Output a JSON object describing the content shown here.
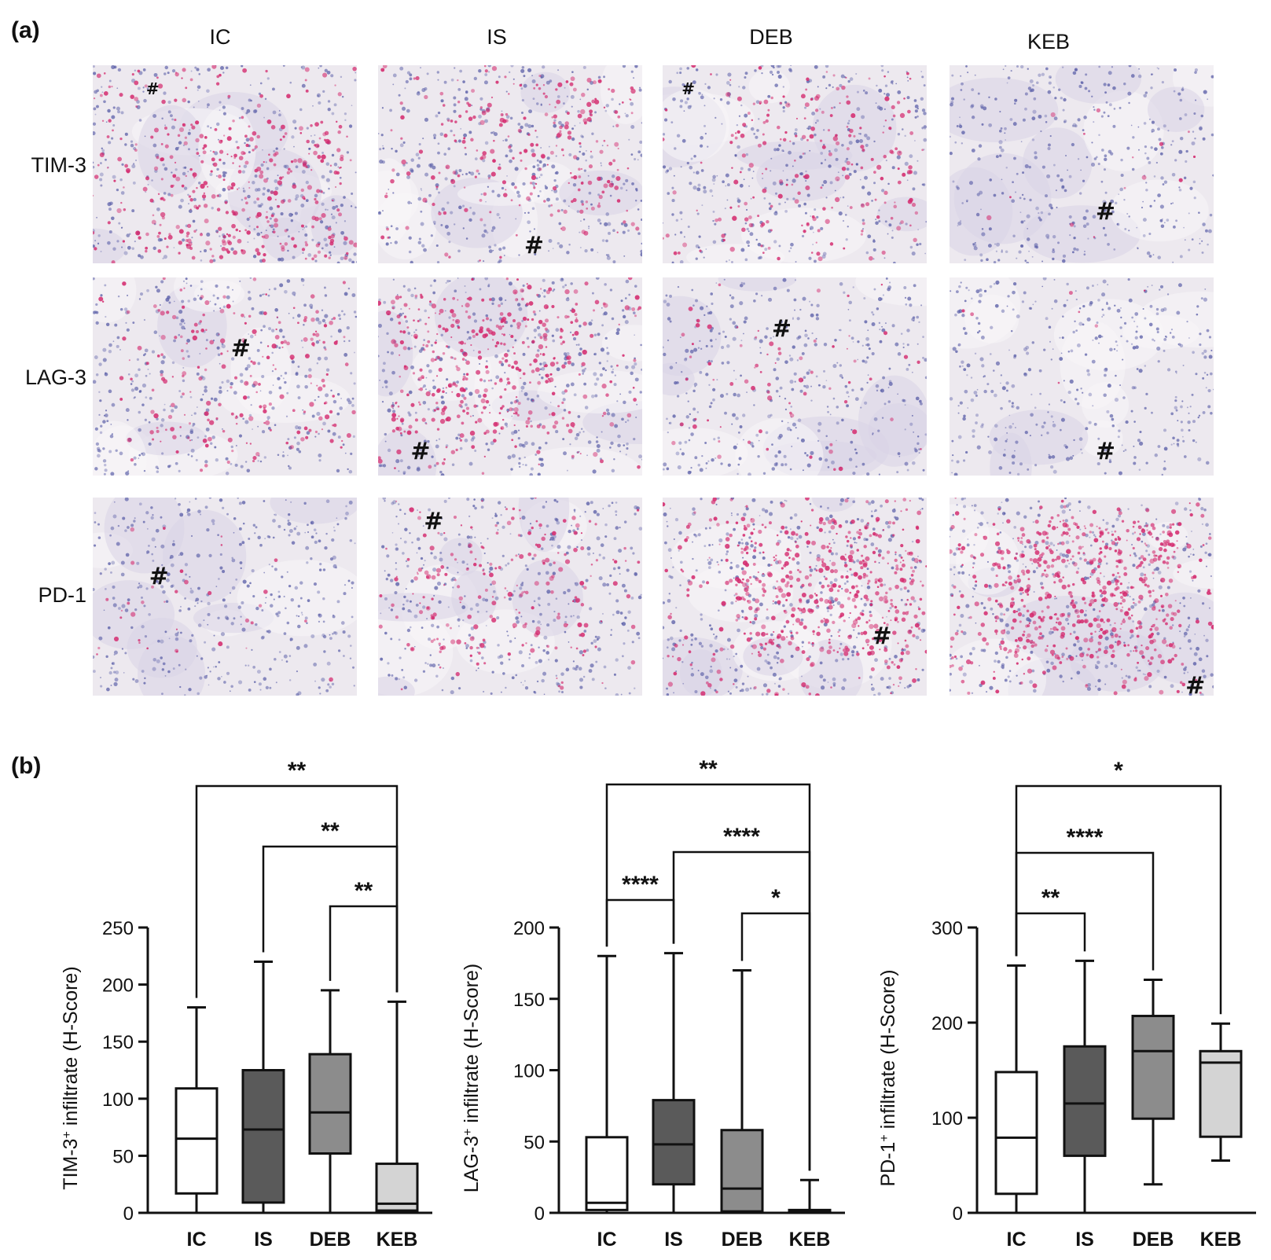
{
  "panel_a": {
    "label": "(a)",
    "columns": [
      "IC",
      "IS",
      "DEB",
      "KEB"
    ],
    "rows": [
      "TIM-3",
      "LAG-3",
      "PD-1"
    ],
    "hash_mark": "#",
    "stain_colors": {
      "background": "#ede9ef",
      "nuclei": "#5b5fa8",
      "positive": "#d42a6e"
    },
    "stain_intensity": [
      [
        0.55,
        0.35,
        0.3,
        0.02
      ],
      [
        0.3,
        0.6,
        0.1,
        0.01
      ],
      [
        0.05,
        0.3,
        0.8,
        0.9
      ]
    ]
  },
  "panel_b": {
    "label": "(b)",
    "box_colors": [
      "#ffffff",
      "#5a5a5a",
      "#8c8c8c",
      "#d4d4d4"
    ]
  },
  "chart_data": [
    {
      "type": "box",
      "title": "",
      "ylabel": "TIM-3",
      "ylabel_sup": "+",
      "ylabel_rest": " infiltrate (H-Score)",
      "categories": [
        "IC",
        "IS",
        "DEB",
        "KEB"
      ],
      "ylim": [
        0,
        250
      ],
      "yticks": [
        0,
        50,
        100,
        150,
        200,
        250
      ],
      "boxes": [
        {
          "min": 0,
          "q1": 17,
          "median": 65,
          "q3": 109,
          "max": 180
        },
        {
          "min": 0,
          "q1": 9,
          "median": 73,
          "q3": 125,
          "max": 220
        },
        {
          "min": 0,
          "q1": 52,
          "median": 88,
          "q3": 139,
          "max": 195
        },
        {
          "min": 0,
          "q1": 2,
          "median": 8,
          "q3": 43,
          "max": 185
        }
      ],
      "significance": [
        {
          "from": 0,
          "to": 3,
          "label": "**"
        },
        {
          "from": 1,
          "to": 3,
          "label": "**"
        },
        {
          "from": 2,
          "to": 3,
          "label": "**"
        }
      ]
    },
    {
      "type": "box",
      "title": "",
      "ylabel": "LAG-3",
      "ylabel_sup": "+",
      "ylabel_rest": " infiltrate (H-Score)",
      "categories": [
        "IC",
        "IS",
        "DEB",
        "KEB"
      ],
      "ylim": [
        0,
        200
      ],
      "yticks": [
        0,
        50,
        100,
        150,
        200
      ],
      "boxes": [
        {
          "min": 0,
          "q1": 2,
          "median": 7,
          "q3": 53,
          "max": 180
        },
        {
          "min": 0,
          "q1": 20,
          "median": 48,
          "q3": 79,
          "max": 182
        },
        {
          "min": 0,
          "q1": 1,
          "median": 17,
          "q3": 58,
          "max": 170
        },
        {
          "min": 0,
          "q1": 0,
          "median": 1,
          "q3": 2,
          "max": 23
        }
      ],
      "significance": [
        {
          "from": 0,
          "to": 3,
          "label": "**"
        },
        {
          "from": 1,
          "to": 3,
          "label": "****"
        },
        {
          "from": 0,
          "to": 1,
          "label": "****"
        },
        {
          "from": 2,
          "to": 3,
          "label": "*"
        }
      ]
    },
    {
      "type": "box",
      "title": "",
      "ylabel": "PD-1",
      "ylabel_sup": "+",
      "ylabel_rest": " infiltrate (H-Score)",
      "categories": [
        "IC",
        "IS",
        "DEB",
        "KEB"
      ],
      "ylim": [
        0,
        300
      ],
      "yticks": [
        0,
        100,
        200,
        300
      ],
      "boxes": [
        {
          "min": 0,
          "q1": 20,
          "median": 79,
          "q3": 148,
          "max": 260
        },
        {
          "min": 0,
          "q1": 60,
          "median": 115,
          "q3": 175,
          "max": 265
        },
        {
          "min": 30,
          "q1": 99,
          "median": 170,
          "q3": 207,
          "max": 245
        },
        {
          "min": 55,
          "q1": 80,
          "median": 158,
          "q3": 170,
          "max": 199
        }
      ],
      "significance": [
        {
          "from": 0,
          "to": 3,
          "label": "*"
        },
        {
          "from": 0,
          "to": 2,
          "label": "****"
        },
        {
          "from": 0,
          "to": 1,
          "label": "**"
        }
      ]
    }
  ]
}
